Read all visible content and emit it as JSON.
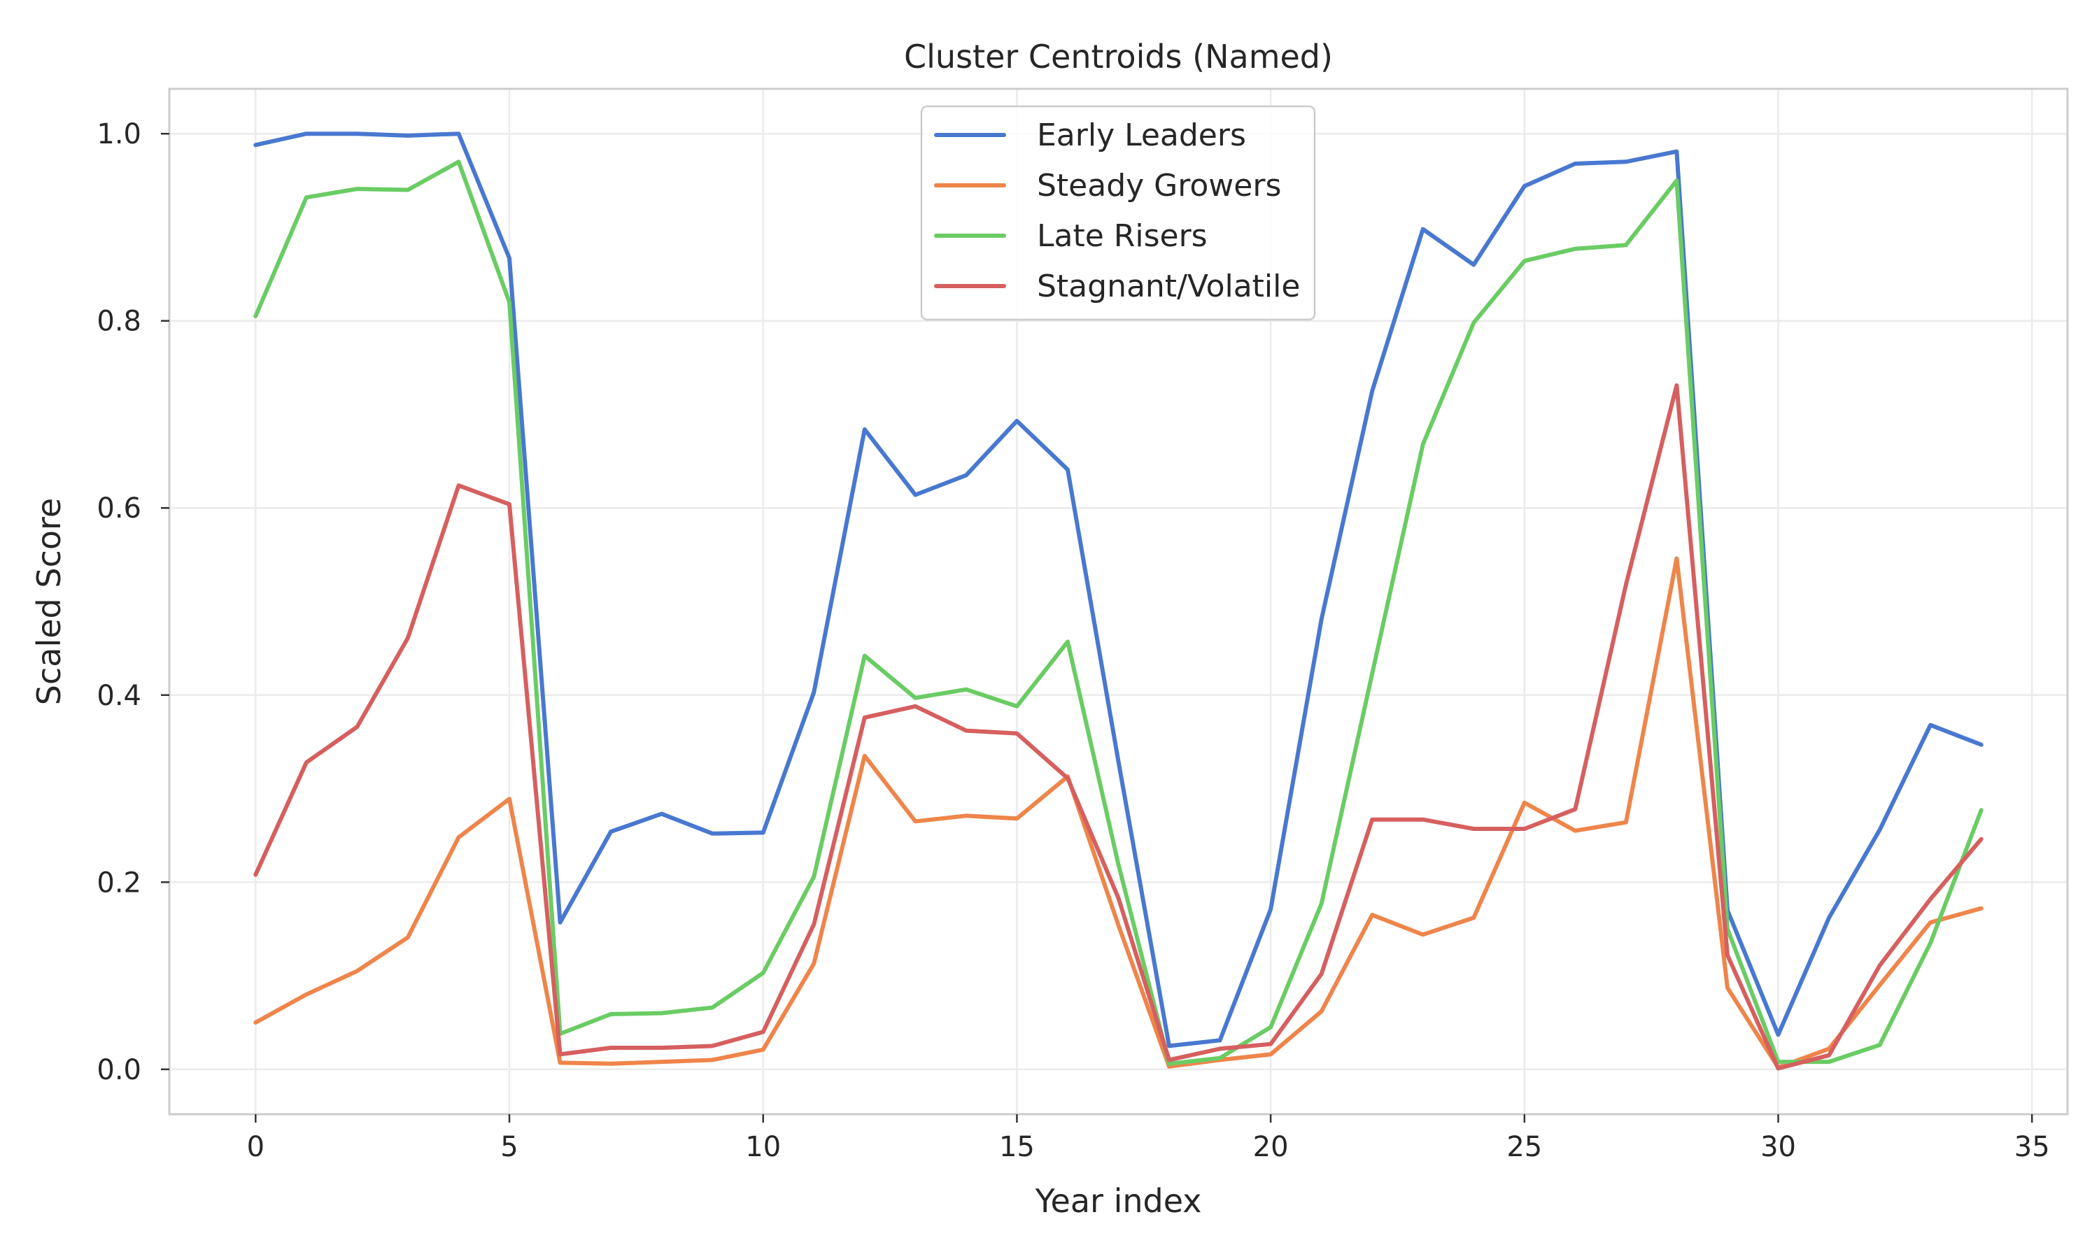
{
  "chart_data": {
    "type": "line",
    "title": "Cluster Centroids (Named)",
    "xlabel": "Year index",
    "ylabel": "Scaled Score",
    "xlim": [
      -1.7,
      35.7
    ],
    "ylim": [
      -0.048,
      1.048
    ],
    "xticks": [
      0,
      5,
      10,
      15,
      20,
      25,
      30,
      35
    ],
    "xtick_labels": [
      "0",
      "5",
      "10",
      "15",
      "20",
      "25",
      "30",
      "35"
    ],
    "yticks": [
      0.0,
      0.2,
      0.4,
      0.6,
      0.8,
      1.0
    ],
    "ytick_labels": [
      "0.0",
      "0.2",
      "0.4",
      "0.6",
      "0.8",
      "1.0"
    ],
    "grid": true,
    "legend_position": "top-center",
    "x": [
      0,
      1,
      2,
      3,
      4,
      5,
      6,
      7,
      8,
      9,
      10,
      11,
      12,
      13,
      14,
      15,
      16,
      17,
      18,
      19,
      20,
      21,
      22,
      23,
      24,
      25,
      26,
      27,
      28,
      29,
      30,
      31,
      32,
      33,
      34
    ],
    "series": [
      {
        "name": "Early Leaders",
        "color": "#4878d0",
        "values": [
          0.988,
          1.0,
          1.0,
          0.998,
          1.0,
          0.867,
          0.157,
          0.254,
          0.273,
          0.252,
          0.253,
          0.403,
          0.684,
          0.614,
          0.635,
          0.693,
          0.641,
          0.329,
          0.025,
          0.031,
          0.171,
          0.481,
          0.725,
          0.898,
          0.86,
          0.944,
          0.968,
          0.97,
          0.981,
          0.17,
          0.037,
          0.162,
          0.256,
          0.368,
          0.347
        ]
      },
      {
        "name": "Steady Growers",
        "color": "#ee854a",
        "values": [
          0.05,
          0.08,
          0.105,
          0.141,
          0.248,
          0.289,
          0.007,
          0.006,
          0.008,
          0.01,
          0.021,
          0.113,
          0.335,
          0.265,
          0.271,
          0.268,
          0.313,
          0.154,
          0.003,
          0.01,
          0.016,
          0.062,
          0.165,
          0.144,
          0.162,
          0.285,
          0.255,
          0.264,
          0.546,
          0.087,
          0.002,
          0.022,
          0.09,
          0.157,
          0.172
        ]
      },
      {
        "name": "Late Risers",
        "color": "#6acc64",
        "values": [
          0.805,
          0.932,
          0.941,
          0.94,
          0.97,
          0.82,
          0.038,
          0.059,
          0.06,
          0.066,
          0.103,
          0.206,
          0.442,
          0.397,
          0.406,
          0.388,
          0.457,
          0.219,
          0.006,
          0.012,
          0.045,
          0.177,
          0.423,
          0.668,
          0.798,
          0.864,
          0.877,
          0.881,
          0.95,
          0.15,
          0.008,
          0.008,
          0.026,
          0.135,
          0.277
        ]
      },
      {
        "name": "Stagnant/Volatile",
        "color": "#d65f5f",
        "values": [
          0.208,
          0.328,
          0.366,
          0.461,
          0.624,
          0.604,
          0.016,
          0.023,
          0.023,
          0.025,
          0.04,
          0.155,
          0.376,
          0.388,
          0.362,
          0.359,
          0.311,
          0.183,
          0.01,
          0.022,
          0.027,
          0.102,
          0.267,
          0.267,
          0.257,
          0.257,
          0.278,
          0.518,
          0.731,
          0.122,
          0.001,
          0.015,
          0.111,
          0.182,
          0.246
        ]
      }
    ]
  }
}
